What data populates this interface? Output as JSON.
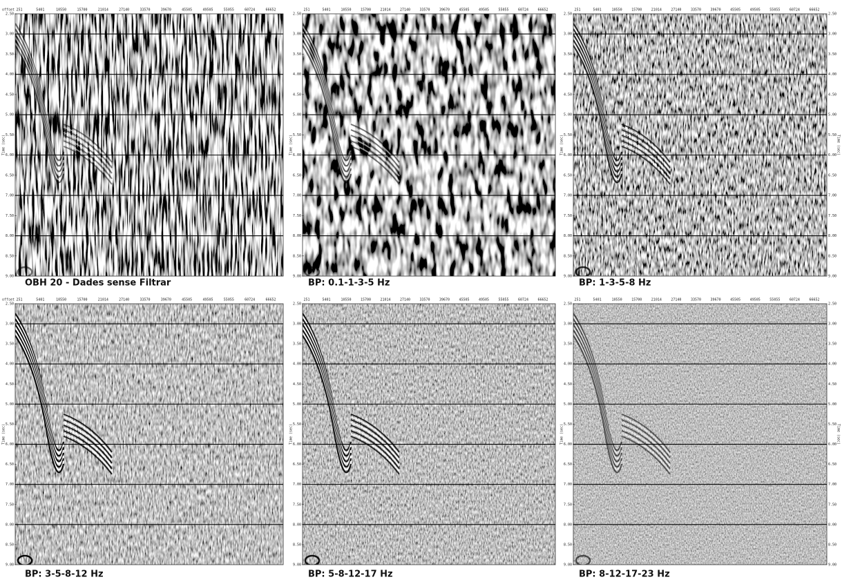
{
  "x_axis": {
    "label": "offset",
    "ticks": [
      "251",
      "5401",
      "10550",
      "15700",
      "21014",
      "27140",
      "33570",
      "39670",
      "45505",
      "49505",
      "55055",
      "60724",
      "66652"
    ]
  },
  "y_axis": {
    "label": "Time (sec)",
    "lim": [
      2.5,
      9.0
    ],
    "ticks": [
      {
        "value": 2.5,
        "label": "2.50"
      },
      {
        "value": 3,
        "label": "3.00"
      },
      {
        "value": 3.5,
        "label": "3.50"
      },
      {
        "value": 4,
        "label": "4.00"
      },
      {
        "value": 4.5,
        "label": "4.50"
      },
      {
        "value": 5,
        "label": "5.00"
      },
      {
        "value": 5.5,
        "label": "5.50"
      },
      {
        "value": 6,
        "label": "6.00"
      },
      {
        "value": 6.5,
        "label": "6.50"
      },
      {
        "value": 7,
        "label": "7.00"
      },
      {
        "value": 7.5,
        "label": "7.50"
      },
      {
        "value": 8,
        "label": "8.00"
      },
      {
        "value": 8.5,
        "label": "8.50"
      },
      {
        "value": 9,
        "label": "9.00"
      }
    ]
  },
  "panels": [
    {
      "caption": "OBH 20 - Dades sense Filtrar"
    },
    {
      "caption": "BP: 0.1-1-3-5 Hz"
    },
    {
      "caption": "BP: 1-3-5-8 Hz"
    },
    {
      "caption": "BP: 3-5-8-12 Hz"
    },
    {
      "caption": "BP: 5-8-12-17 Hz"
    },
    {
      "caption": "BP: 8-12-17-23 Hz"
    }
  ]
}
